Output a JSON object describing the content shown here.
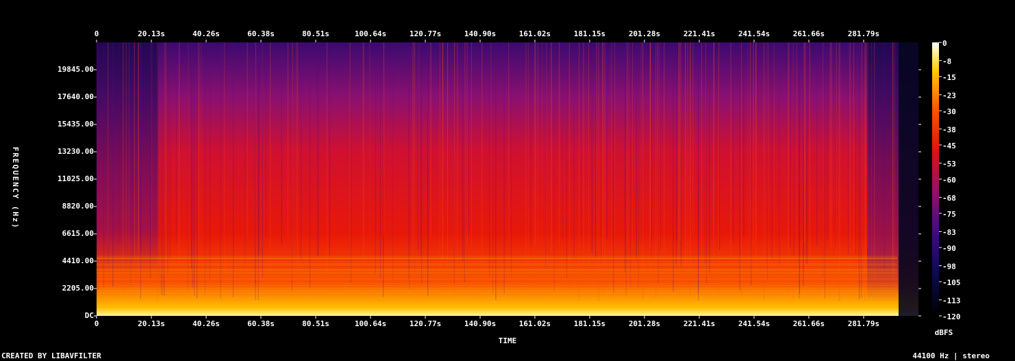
{
  "chart_data": {
    "type": "spectrogram",
    "xlabel": "TIME",
    "ylabel": "FREQUENCY (Hz)",
    "xlim": [
      0,
      301.92
    ],
    "xticks": [
      0,
      {
        "value": 20.13,
        "label": "20.13s"
      },
      {
        "value": 40.26,
        "label": "40.26s"
      },
      {
        "value": 60.38,
        "label": "60.38s"
      },
      {
        "value": 80.51,
        "label": "80.51s"
      },
      {
        "value": 100.64,
        "label": "100.64s"
      },
      {
        "value": 120.77,
        "label": "120.77s"
      },
      {
        "value": 140.9,
        "label": "140.90s"
      },
      {
        "value": 161.02,
        "label": "161.02s"
      },
      {
        "value": 181.15,
        "label": "181.15s"
      },
      {
        "value": 201.28,
        "label": "201.28s"
      },
      {
        "value": 221.41,
        "label": "221.41s"
      },
      {
        "value": 241.54,
        "label": "241.54s"
      },
      {
        "value": 261.66,
        "label": "261.66s"
      },
      {
        "value": 281.79,
        "label": "281.79s"
      }
    ],
    "ylim": [
      0,
      22050
    ],
    "yticks": [
      {
        "value": 0,
        "label": "DC"
      },
      {
        "value": 2205,
        "label": "2205.00"
      },
      {
        "value": 4410,
        "label": "4410.00"
      },
      {
        "value": 6615,
        "label": "6615.00"
      },
      {
        "value": 8820,
        "label": "8820.00"
      },
      {
        "value": 11025,
        "label": "11025.00"
      },
      {
        "value": 13230,
        "label": "13230.00"
      },
      {
        "value": 15435,
        "label": "15435.00"
      },
      {
        "value": 17640,
        "label": "17640.00"
      },
      {
        "value": 19845,
        "label": "19845.00"
      }
    ],
    "colorbar_label": "dBFS",
    "clim": [
      -120,
      0
    ],
    "cticks": [
      0,
      -8,
      -15,
      -23,
      -30,
      -38,
      -45,
      -53,
      -60,
      -68,
      -75,
      -83,
      -90,
      -98,
      -105,
      -113,
      -120
    ],
    "footer_left": "CREATED BY LIBAVFILTER",
    "footer_right": "44100 Hz | stereo"
  }
}
